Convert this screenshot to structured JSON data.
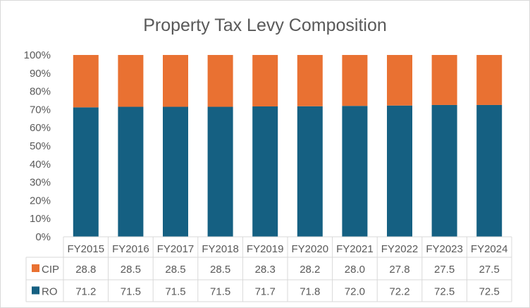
{
  "chart_data": {
    "type": "bar",
    "stacked": "percent",
    "title": "Property Tax Levy Composition",
    "categories": [
      "FY2015",
      "FY2016",
      "FY2017",
      "FY2018",
      "FY2019",
      "FY2020",
      "FY2021",
      "FY2022",
      "FY2023",
      "FY2024"
    ],
    "series": [
      {
        "name": "CIP",
        "color": "#E97132",
        "values": [
          28.8,
          28.5,
          28.5,
          28.5,
          28.3,
          28.2,
          28.0,
          27.8,
          27.5,
          27.5
        ]
      },
      {
        "name": "RO",
        "color": "#156082",
        "values": [
          71.2,
          71.5,
          71.5,
          71.5,
          71.7,
          71.8,
          72.0,
          72.2,
          72.5,
          72.5
        ]
      }
    ],
    "ylim": [
      0,
      100
    ],
    "yticks": [
      "0%",
      "10%",
      "20%",
      "30%",
      "40%",
      "50%",
      "60%",
      "70%",
      "80%",
      "90%",
      "100%"
    ],
    "grid": false,
    "legend": "data-table"
  }
}
